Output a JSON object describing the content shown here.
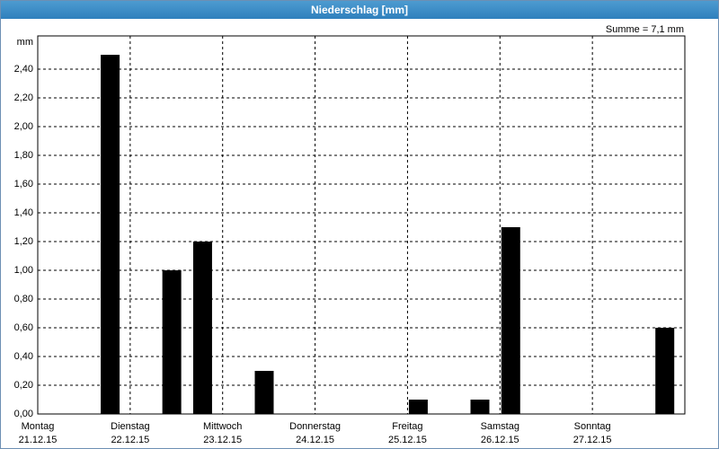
{
  "window_title": "Niederschlag [mm]",
  "chart_data": {
    "type": "bar",
    "y_unit": "mm",
    "annotation": "Summe = 7,1 mm",
    "categories": [
      null,
      null,
      null,
      null,
      null,
      null,
      null,
      null,
      null,
      null,
      null,
      null,
      null,
      null,
      null,
      null,
      null,
      null,
      null,
      null,
      null
    ],
    "values": [
      0,
      0,
      2.5,
      0,
      1.0,
      1.2,
      0,
      0.3,
      0,
      0,
      0,
      0,
      0.1,
      0,
      0.1,
      1.3,
      0,
      0,
      0,
      0,
      0.6
    ],
    "color": "#000000",
    "xlim": [
      0,
      21
    ],
    "xticks": [
      {
        "value": 0,
        "label": "Montag"
      },
      {
        "value": 3,
        "label": "Dienstag"
      },
      {
        "value": 6,
        "label": "Mittwoch"
      },
      {
        "value": 9,
        "label": "Donnerstag"
      },
      {
        "value": 12,
        "label": "Freitag"
      },
      {
        "value": 15,
        "label": "Samstag"
      },
      {
        "value": 18,
        "label": "Sonntag"
      },
      {
        "value": 21,
        "label": null
      }
    ],
    "xtick_dates": [
      "21.12.15",
      "22.12.15",
      "23.12.15",
      "24.12.15",
      "25.12.15",
      "26.12.15",
      "27.12.15",
      null
    ],
    "ylim": [
      0,
      2.6
    ],
    "yticks": [
      {
        "value": 0,
        "label": "0,00"
      },
      {
        "value": 0.2,
        "label": "0,20"
      },
      {
        "value": 0.4,
        "label": "0,40"
      },
      {
        "value": 0.6,
        "label": "0,60"
      },
      {
        "value": 0.8,
        "label": "0,80"
      },
      {
        "value": 1.0,
        "label": "1,00"
      },
      {
        "value": 1.2,
        "label": "1,20"
      },
      {
        "value": 1.4,
        "label": "1,40"
      },
      {
        "value": 1.6,
        "label": "1,60"
      },
      {
        "value": 1.8,
        "label": "1,80"
      },
      {
        "value": 2.0,
        "label": "2,00"
      },
      {
        "value": 2.2,
        "label": "2,20"
      },
      {
        "value": 2.4,
        "label": "2,40"
      }
    ],
    "grid": true
  }
}
